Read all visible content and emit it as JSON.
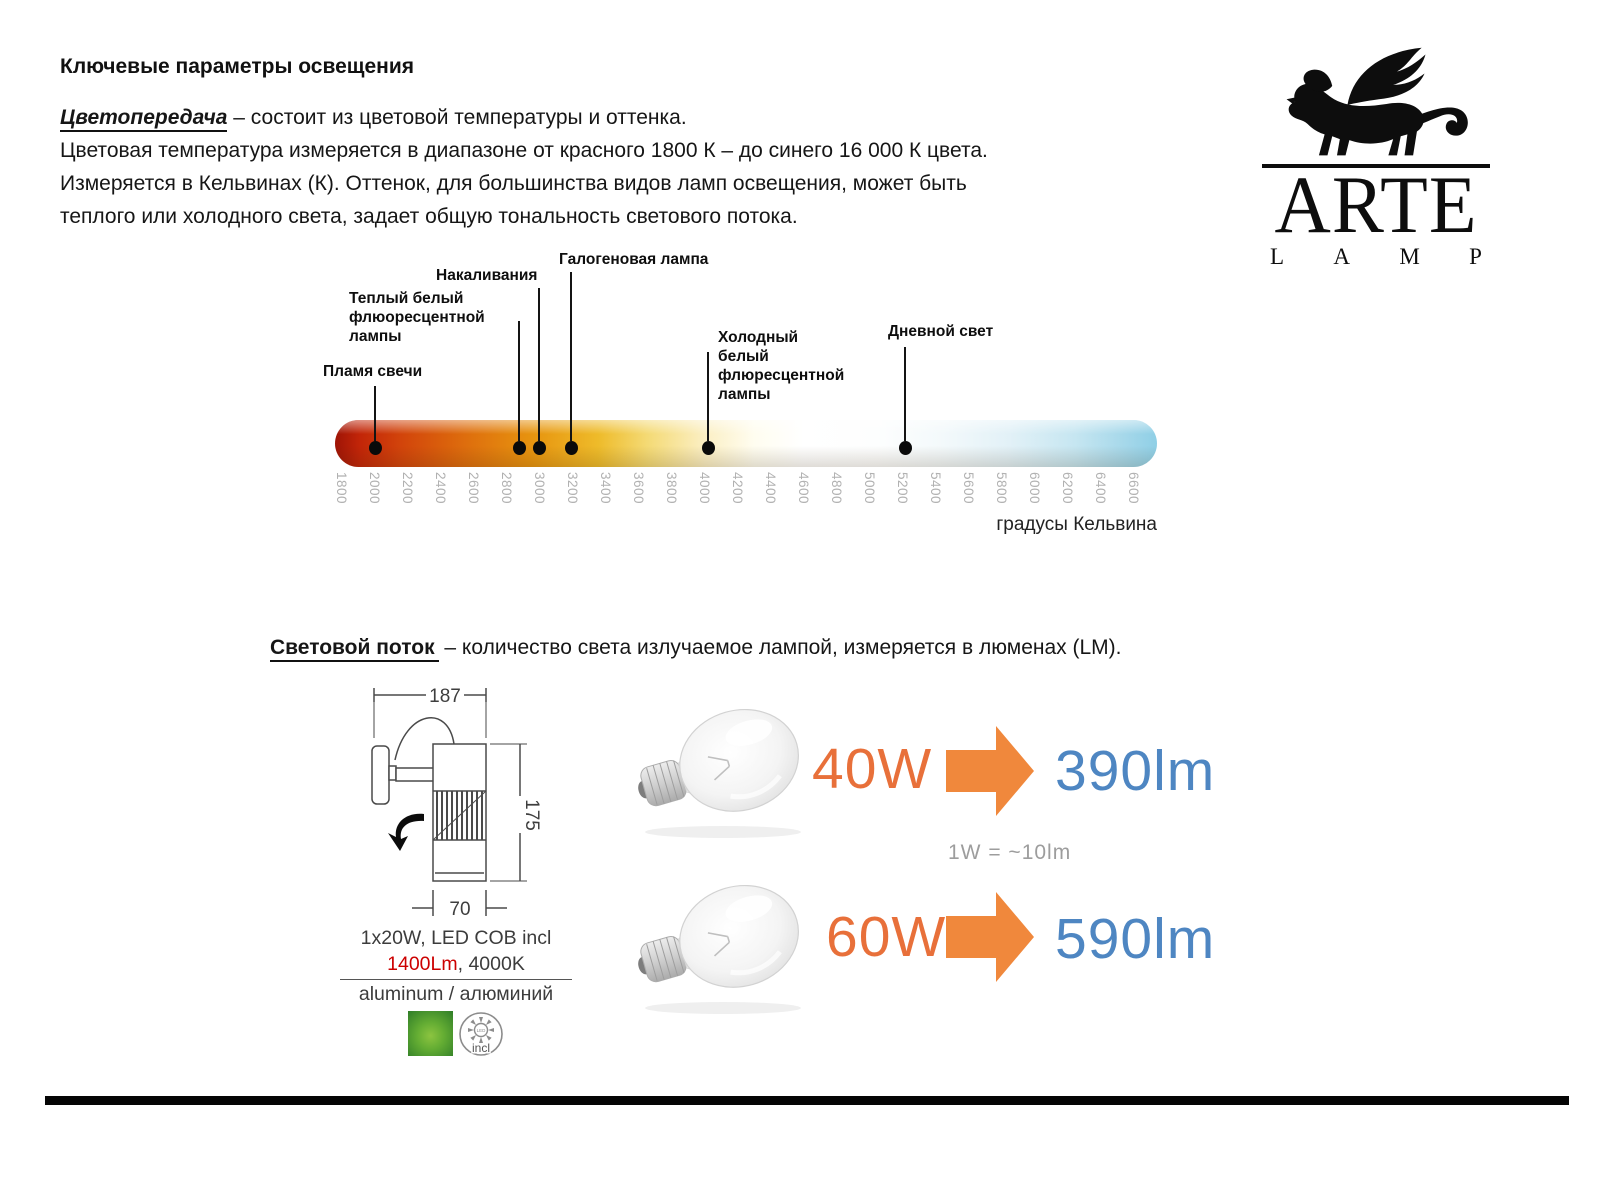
{
  "title": "Ключевые параметры освещения",
  "intro": {
    "term": "Цветопередача",
    "term_rest": " – состоит из цветовой температуры и оттенка.",
    "line2": "Цветовая температура измеряется в диапазоне от красного 1800 К – до синего 16 000 К цвета.",
    "line3": "Измеряется в Кельвинах (К). Оттенок, для большинства видов ламп освещения, может быть",
    "line4": "теплого или холодного света, задает общую тональность светового потока."
  },
  "logo": {
    "brand": "ARTE",
    "letters": [
      "L",
      "A",
      "M",
      "P"
    ]
  },
  "kelvin_scale": {
    "unit_label": "градусы Кельвина",
    "min_k": 1800,
    "max_k": 6600,
    "step_k": 200,
    "ticks": [
      "1800",
      "2000",
      "2200",
      "2400",
      "2600",
      "2800",
      "3000",
      "3200",
      "3400",
      "3600",
      "3800",
      "4000",
      "4200",
      "4400",
      "4600",
      "4800",
      "5000",
      "5200",
      "5400",
      "5600",
      "5800",
      "6000",
      "6200",
      "6400",
      "6600"
    ],
    "markers": [
      {
        "label": "Пламя свечи",
        "kelvin": 2000
      },
      {
        "label": "Теплый белый флюоресцентной лампы",
        "kelvin": 2800
      },
      {
        "label": "Накаливания",
        "kelvin": 3000
      },
      {
        "label": "Галогеновая лампа",
        "kelvin": 3200
      },
      {
        "label": "Холодный белый флюресцентной лампы",
        "kelvin": 4000
      },
      {
        "label": "Дневной свет",
        "kelvin": 5200
      }
    ]
  },
  "flux": {
    "term": "Световой поток",
    "definition": " – количество света излучаемое лампой, измеряется в люменах (LM).",
    "drawing": {
      "width_mm": "187",
      "height_mm": "175",
      "diameter_mm": "70"
    },
    "product": {
      "spec_line1": "1x20W, LED COB incl",
      "lumens": "1400Lm",
      "kelvin_suffix": ", 4000K",
      "material": "aluminum / алюминий",
      "led_label": "LED",
      "incl_label": "incl"
    },
    "conversion_note": "1W = ~10lm",
    "rows": [
      {
        "watts": "40W",
        "lumens": "390lm"
      },
      {
        "watts": "60W",
        "lumens": "590lm"
      }
    ]
  },
  "colors": {
    "watt_orange": "#e8703a",
    "arrow_orange": "#f0883c",
    "lumen_blue": "#4e86c2",
    "lumens_red": "#cc0000",
    "scale_left_red": "#9e1406",
    "scale_right_blue": "#8fcfe6"
  }
}
